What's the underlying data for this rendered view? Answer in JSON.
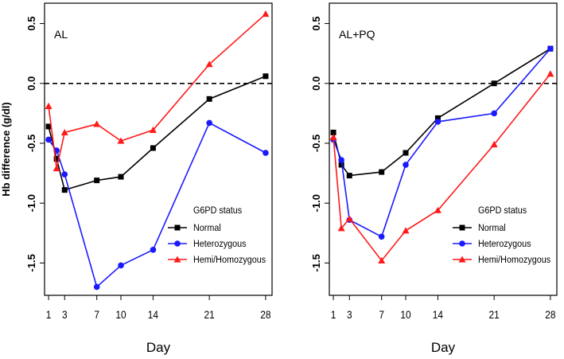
{
  "ylabel": "Hb difference (g/dl)",
  "chart_data": [
    {
      "type": "line",
      "title": "AL",
      "xlabel": "Day",
      "ylabel": "Hb difference (g/dl)",
      "x_ticks": [
        1,
        3,
        7,
        10,
        14,
        21,
        28
      ],
      "y_ticks": [
        -1.5,
        -1.0,
        -0.5,
        0.0,
        0.5
      ],
      "y_tick_labels": [
        "-1.5",
        "-1.0",
        "-0.5",
        "0.0",
        "0.5"
      ],
      "xlim": [
        0.5,
        28.8
      ],
      "ylim": [
        -1.77,
        0.67
      ],
      "reference_line": 0,
      "legend_title": "G6PD status",
      "series": [
        {
          "name": "Normal",
          "color": "#000000",
          "marker": "square",
          "x": [
            1,
            2,
            3,
            7,
            10,
            14,
            21,
            28
          ],
          "y": [
            -0.36,
            -0.63,
            -0.89,
            -0.81,
            -0.78,
            -0.54,
            -0.13,
            0.06
          ]
        },
        {
          "name": "Heterozygous",
          "color": "#1a1aff",
          "marker": "circle",
          "x": [
            1,
            2,
            3,
            7,
            10,
            14,
            21,
            28
          ],
          "y": [
            -0.47,
            -0.56,
            -0.76,
            -1.7,
            -1.52,
            -1.39,
            -0.33,
            -0.58
          ]
        },
        {
          "name": "Hemi/Homozygous",
          "color": "#ff1a1a",
          "marker": "triangle",
          "x": [
            1,
            2,
            3,
            7,
            10,
            14,
            21,
            28
          ],
          "y": [
            -0.19,
            -0.71,
            -0.41,
            -0.34,
            -0.48,
            -0.39,
            0.16,
            0.58
          ]
        }
      ]
    },
    {
      "type": "line",
      "title": "AL+PQ",
      "xlabel": "Day",
      "ylabel": "",
      "x_ticks": [
        1,
        3,
        7,
        10,
        14,
        21,
        28
      ],
      "y_ticks": [
        -1.5,
        -1.0,
        -0.5,
        0.0,
        0.5
      ],
      "y_tick_labels": [
        "-1.5",
        "-1.0",
        "-0.5",
        "0.0",
        "0.5"
      ],
      "xlim": [
        0.5,
        28.8
      ],
      "ylim": [
        -1.77,
        0.67
      ],
      "reference_line": 0,
      "legend_title": "G6PD status",
      "series": [
        {
          "name": "Normal",
          "color": "#000000",
          "marker": "square",
          "x": [
            1,
            2,
            3,
            7,
            10,
            14,
            21,
            28
          ],
          "y": [
            -0.41,
            -0.68,
            -0.77,
            -0.74,
            -0.58,
            -0.29,
            0.0,
            0.29
          ]
        },
        {
          "name": "Heterozygous",
          "color": "#1a1aff",
          "marker": "circle",
          "x": [
            1,
            2,
            3,
            7,
            10,
            14,
            21,
            28
          ],
          "y": [
            -0.47,
            -0.64,
            -1.14,
            -1.28,
            -0.68,
            -0.32,
            -0.25,
            0.29
          ]
        },
        {
          "name": "Hemi/Homozygous",
          "color": "#ff1a1a",
          "marker": "triangle",
          "x": [
            1,
            2,
            3,
            7,
            10,
            14,
            21,
            28
          ],
          "y": [
            -0.45,
            -1.21,
            -1.13,
            -1.48,
            -1.23,
            -1.06,
            -0.51,
            0.08
          ]
        }
      ]
    }
  ]
}
